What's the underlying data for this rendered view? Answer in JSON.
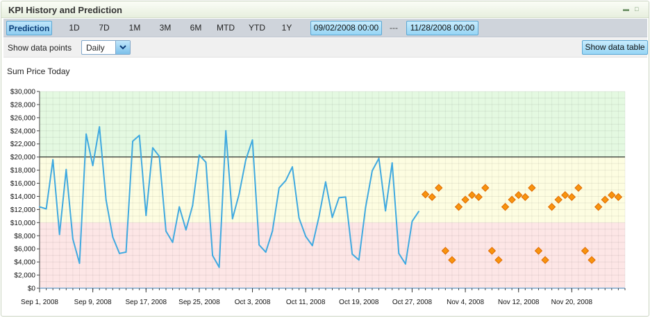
{
  "panel": {
    "title": "KPI History and Prediction"
  },
  "periods": {
    "prediction": "Prediction",
    "d1": "1D",
    "d7": "7D",
    "m1": "1M",
    "m3": "3M",
    "m6": "6M",
    "mtd": "MTD",
    "ytd": "YTD",
    "y1": "1Y",
    "start_date": "09/02/2008 00:00",
    "separator": "---",
    "end_date": "11/28/2008 00:00"
  },
  "controls": {
    "show_points_label": "Show data points",
    "granularity": "Daily",
    "show_table": "Show data table"
  },
  "colors": {
    "accent": "#3fa9e0",
    "prediction": "#f7930e",
    "band_high": "#e4f9e1",
    "band_mid": "#fdfde1",
    "band_low": "#fde6e6",
    "threshold": "#000000"
  },
  "chart_data": {
    "type": "line",
    "title": "Sum Price Today",
    "ylim": [
      0,
      30000
    ],
    "y_ticks": [
      0,
      2000,
      4000,
      6000,
      8000,
      10000,
      12000,
      14000,
      16000,
      18000,
      20000,
      22000,
      24000,
      26000,
      28000,
      30000
    ],
    "y_tick_labels": [
      "$0",
      "$2,000",
      "$4,000",
      "$6,000",
      "$8,000",
      "$10,000",
      "$12,000",
      "$14,000",
      "$16,000",
      "$18,000",
      "$20,000",
      "$22,000",
      "$24,000",
      "$26,000",
      "$28,000",
      "$30,000"
    ],
    "x_range": [
      "2008-09-01",
      "2008-11-28"
    ],
    "x_ticks": [
      {
        "date": "2008-09-01",
        "label": "Sep 1, 2008"
      },
      {
        "date": "2008-09-09",
        "label": "Sep 9, 2008"
      },
      {
        "date": "2008-09-17",
        "label": "Sep 17, 2008"
      },
      {
        "date": "2008-09-25",
        "label": "Sep 25, 2008"
      },
      {
        "date": "2008-10-03",
        "label": "Oct 3, 2008"
      },
      {
        "date": "2008-10-11",
        "label": "Oct 11, 2008"
      },
      {
        "date": "2008-10-19",
        "label": "Oct 19, 2008"
      },
      {
        "date": "2008-10-27",
        "label": "Oct 27, 2008"
      },
      {
        "date": "2008-11-04",
        "label": "Nov 4, 2008"
      },
      {
        "date": "2008-11-12",
        "label": "Nov 12, 2008"
      },
      {
        "date": "2008-11-20",
        "label": "Nov 20, 2008"
      }
    ],
    "bands": [
      {
        "from": 20000,
        "to": 30000,
        "color": "#e4f9e1"
      },
      {
        "from": 10000,
        "to": 20000,
        "color": "#fdfde1"
      },
      {
        "from": 0,
        "to": 10000,
        "color": "#fde6e6"
      }
    ],
    "threshold": 20000,
    "grid": true,
    "series": [
      {
        "type": "line",
        "color": "#3fa9e0",
        "points": [
          [
            "2008-09-01",
            12400
          ],
          [
            "2008-09-02",
            12100
          ],
          [
            "2008-09-03",
            19600
          ],
          [
            "2008-09-04",
            8200
          ],
          [
            "2008-09-05",
            18100
          ],
          [
            "2008-09-06",
            7500
          ],
          [
            "2008-09-07",
            3800
          ],
          [
            "2008-09-08",
            23500
          ],
          [
            "2008-09-09",
            18700
          ],
          [
            "2008-09-10",
            24600
          ],
          [
            "2008-09-11",
            13400
          ],
          [
            "2008-09-12",
            7800
          ],
          [
            "2008-09-13",
            5300
          ],
          [
            "2008-09-14",
            5500
          ],
          [
            "2008-09-15",
            22400
          ],
          [
            "2008-09-16",
            23300
          ],
          [
            "2008-09-17",
            11100
          ],
          [
            "2008-09-18",
            21400
          ],
          [
            "2008-09-19",
            20100
          ],
          [
            "2008-09-20",
            8700
          ],
          [
            "2008-09-21",
            7000
          ],
          [
            "2008-09-22",
            12400
          ],
          [
            "2008-09-23",
            8900
          ],
          [
            "2008-09-24",
            12600
          ],
          [
            "2008-09-25",
            20300
          ],
          [
            "2008-09-26",
            19200
          ],
          [
            "2008-09-27",
            5000
          ],
          [
            "2008-09-28",
            3200
          ],
          [
            "2008-09-29",
            24000
          ],
          [
            "2008-09-30",
            10600
          ],
          [
            "2008-10-01",
            14400
          ],
          [
            "2008-10-02",
            19600
          ],
          [
            "2008-10-03",
            22600
          ],
          [
            "2008-10-04",
            6600
          ],
          [
            "2008-10-05",
            5500
          ],
          [
            "2008-10-06",
            8700
          ],
          [
            "2008-10-07",
            15300
          ],
          [
            "2008-10-08",
            16400
          ],
          [
            "2008-10-09",
            18500
          ],
          [
            "2008-10-10",
            10700
          ],
          [
            "2008-10-11",
            7900
          ],
          [
            "2008-10-12",
            6500
          ],
          [
            "2008-10-13",
            10900
          ],
          [
            "2008-10-14",
            16200
          ],
          [
            "2008-10-15",
            10800
          ],
          [
            "2008-10-16",
            13800
          ],
          [
            "2008-10-17",
            13900
          ],
          [
            "2008-10-18",
            5200
          ],
          [
            "2008-10-19",
            4300
          ],
          [
            "2008-10-20",
            12300
          ],
          [
            "2008-10-21",
            17900
          ],
          [
            "2008-10-22",
            19800
          ],
          [
            "2008-10-23",
            11800
          ],
          [
            "2008-10-24",
            19100
          ],
          [
            "2008-10-25",
            5300
          ],
          [
            "2008-10-26",
            3700
          ],
          [
            "2008-10-27",
            10200
          ],
          [
            "2008-10-28",
            11700
          ]
        ]
      },
      {
        "type": "scatter",
        "marker": "diamond",
        "color": "#f7930e",
        "points": [
          [
            "2008-10-29",
            14300
          ],
          [
            "2008-10-30",
            13900
          ],
          [
            "2008-10-31",
            15300
          ],
          [
            "2008-11-01",
            5700
          ],
          [
            "2008-11-02",
            4300
          ],
          [
            "2008-11-03",
            12400
          ],
          [
            "2008-11-04",
            13500
          ],
          [
            "2008-11-05",
            14200
          ],
          [
            "2008-11-06",
            13900
          ],
          [
            "2008-11-07",
            15300
          ],
          [
            "2008-11-08",
            5700
          ],
          [
            "2008-11-09",
            4300
          ],
          [
            "2008-11-10",
            12400
          ],
          [
            "2008-11-11",
            13500
          ],
          [
            "2008-11-12",
            14200
          ],
          [
            "2008-11-13",
            13900
          ],
          [
            "2008-11-14",
            15300
          ],
          [
            "2008-11-15",
            5700
          ],
          [
            "2008-11-16",
            4300
          ],
          [
            "2008-11-17",
            12400
          ],
          [
            "2008-11-18",
            13500
          ],
          [
            "2008-11-19",
            14200
          ],
          [
            "2008-11-20",
            13900
          ],
          [
            "2008-11-21",
            15300
          ],
          [
            "2008-11-22",
            5700
          ],
          [
            "2008-11-23",
            4300
          ],
          [
            "2008-11-24",
            12400
          ],
          [
            "2008-11-25",
            13500
          ],
          [
            "2008-11-26",
            14200
          ],
          [
            "2008-11-27",
            13900
          ]
        ]
      }
    ]
  }
}
